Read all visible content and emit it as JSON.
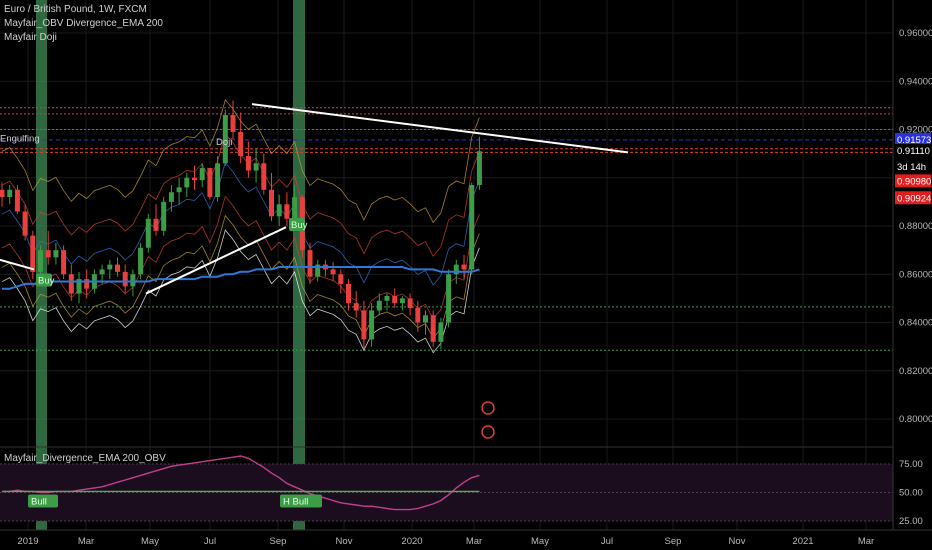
{
  "header": {
    "symbol_line": "Euro / British Pound, 1W, FXCM",
    "indicator_1": "Mayfair_OBV Divergence_EMA 200",
    "indicator_2": "Mayfair Doji"
  },
  "pane2": {
    "title": "Mayfair_Divergence_EMA 200_OBV"
  },
  "colors": {
    "background": "#000000",
    "bull": "#3d9c46",
    "bear": "#e8403e",
    "ema": "#2f78d6",
    "trendline": "#ffffff",
    "osc_line": "#c23f8e",
    "osc_signal": "#4caf50",
    "highlight": "#3f8a55"
  },
  "chart_data": [
    {
      "type": "candlestick",
      "title": "Euro / British Pound, 1W, FXCM",
      "ylim": [
        0.78,
        0.97
      ],
      "y_ticks": [
        "0.96000",
        "0.94000",
        "0.92000",
        "0.88000",
        "0.86000",
        "0.84000",
        "0.82000",
        "0.80000"
      ],
      "x_ticks": [
        "2019",
        "Mar",
        "May",
        "Jul",
        "Sep",
        "Nov",
        "2020",
        "Mar",
        "May",
        "Jul",
        "Sep",
        "Nov",
        "2021",
        "Mar"
      ],
      "price_labels": [
        {
          "text": "0.91573",
          "color": "#2a33d9"
        },
        {
          "text": "0.91110",
          "color": "#ffffff"
        },
        {
          "text": "3d 14h",
          "color": "#ffffff"
        },
        {
          "text": "0.90980",
          "color": "#e01e1e"
        },
        {
          "text": "0.90924",
          "color": "#e01e1e"
        }
      ],
      "annotations": [
        "Engulfing",
        "Doji",
        "Buy",
        "Buy"
      ],
      "candles": [
        [
          0.895,
          0.898,
          0.888,
          0.892
        ],
        [
          0.892,
          0.897,
          0.889,
          0.895
        ],
        [
          0.895,
          0.897,
          0.885,
          0.886
        ],
        [
          0.886,
          0.889,
          0.874,
          0.876
        ],
        [
          0.876,
          0.878,
          0.858,
          0.861
        ],
        [
          0.861,
          0.872,
          0.859,
          0.87
        ],
        [
          0.87,
          0.878,
          0.864,
          0.867
        ],
        [
          0.867,
          0.873,
          0.864,
          0.87
        ],
        [
          0.87,
          0.872,
          0.858,
          0.86
        ],
        [
          0.86,
          0.864,
          0.849,
          0.852
        ],
        [
          0.852,
          0.861,
          0.848,
          0.858
        ],
        [
          0.858,
          0.862,
          0.85,
          0.854
        ],
        [
          0.854,
          0.862,
          0.852,
          0.86
        ],
        [
          0.86,
          0.864,
          0.856,
          0.862
        ],
        [
          0.862,
          0.866,
          0.858,
          0.864
        ],
        [
          0.864,
          0.867,
          0.859,
          0.861
        ],
        [
          0.861,
          0.864,
          0.852,
          0.855
        ],
        [
          0.855,
          0.862,
          0.851,
          0.86
        ],
        [
          0.86,
          0.873,
          0.858,
          0.871
        ],
        [
          0.871,
          0.885,
          0.869,
          0.883
        ],
        [
          0.883,
          0.889,
          0.876,
          0.878
        ],
        [
          0.878,
          0.892,
          0.876,
          0.89
        ],
        [
          0.89,
          0.897,
          0.886,
          0.894
        ],
        [
          0.894,
          0.9,
          0.889,
          0.896
        ],
        [
          0.896,
          0.902,
          0.892,
          0.9
        ],
        [
          0.9,
          0.905,
          0.895,
          0.899
        ],
        [
          0.899,
          0.906,
          0.896,
          0.904
        ],
        [
          0.904,
          0.904,
          0.891,
          0.892
        ],
        [
          0.892,
          0.909,
          0.89,
          0.906
        ],
        [
          0.906,
          0.928,
          0.905,
          0.926
        ],
        [
          0.926,
          0.932,
          0.916,
          0.919
        ],
        [
          0.919,
          0.927,
          0.906,
          0.909
        ],
        [
          0.909,
          0.915,
          0.9,
          0.903
        ],
        [
          0.903,
          0.912,
          0.898,
          0.906
        ],
        [
          0.906,
          0.91,
          0.893,
          0.895
        ],
        [
          0.895,
          0.902,
          0.882,
          0.884
        ],
        [
          0.884,
          0.893,
          0.88,
          0.889
        ],
        [
          0.889,
          0.894,
          0.88,
          0.883
        ],
        [
          0.883,
          0.897,
          0.881,
          0.892
        ],
        [
          0.892,
          0.893,
          0.867,
          0.87
        ],
        [
          0.87,
          0.873,
          0.856,
          0.859
        ],
        [
          0.859,
          0.866,
          0.857,
          0.864
        ],
        [
          0.864,
          0.866,
          0.859,
          0.862
        ],
        [
          0.862,
          0.865,
          0.857,
          0.86
        ],
        [
          0.86,
          0.862,
          0.852,
          0.856
        ],
        [
          0.856,
          0.858,
          0.845,
          0.848
        ],
        [
          0.848,
          0.853,
          0.842,
          0.845
        ],
        [
          0.845,
          0.849,
          0.829,
          0.833
        ],
        [
          0.833,
          0.848,
          0.83,
          0.845
        ],
        [
          0.845,
          0.852,
          0.843,
          0.849
        ],
        [
          0.849,
          0.852,
          0.845,
          0.851
        ],
        [
          0.851,
          0.854,
          0.846,
          0.848
        ],
        [
          0.848,
          0.851,
          0.845,
          0.85
        ],
        [
          0.85,
          0.852,
          0.843,
          0.846
        ],
        [
          0.846,
          0.849,
          0.836,
          0.84
        ],
        [
          0.84,
          0.845,
          0.835,
          0.843
        ],
        [
          0.843,
          0.845,
          0.83,
          0.832
        ],
        [
          0.832,
          0.842,
          0.829,
          0.84
        ],
        [
          0.84,
          0.862,
          0.838,
          0.86
        ],
        [
          0.86,
          0.866,
          0.856,
          0.864
        ],
        [
          0.864,
          0.868,
          0.858,
          0.862
        ],
        [
          0.862,
          0.898,
          0.86,
          0.897
        ],
        [
          0.897,
          0.917,
          0.895,
          0.911
        ]
      ],
      "ema200": [
        0.854,
        0.854,
        0.855,
        0.856,
        0.856,
        0.856,
        0.857,
        0.857,
        0.857,
        0.857,
        0.857,
        0.857,
        0.857,
        0.857,
        0.857,
        0.857,
        0.857,
        0.857,
        0.857,
        0.857,
        0.858,
        0.858,
        0.858,
        0.858,
        0.858,
        0.858,
        0.859,
        0.859,
        0.859,
        0.86,
        0.86,
        0.861,
        0.861,
        0.862,
        0.862,
        0.862,
        0.863,
        0.863,
        0.863,
        0.863,
        0.863,
        0.863,
        0.863,
        0.863,
        0.863,
        0.863,
        0.863,
        0.863,
        0.863,
        0.863,
        0.863,
        0.863,
        0.863,
        0.862,
        0.862,
        0.862,
        0.862,
        0.861,
        0.861,
        0.861,
        0.861,
        0.861,
        0.862
      ]
    },
    {
      "type": "line",
      "title": "Mayfair_Divergence_EMA 200_OBV",
      "ylim": [
        20,
        80
      ],
      "y_ticks": [
        "75.00",
        "50.00",
        "25.00"
      ],
      "series": [
        {
          "values": [
            51,
            51,
            52,
            51,
            51,
            50,
            50,
            51,
            51,
            51,
            52,
            53,
            54,
            55,
            57,
            59,
            61,
            63,
            65,
            67,
            69,
            71,
            73,
            74,
            75,
            76,
            77,
            78,
            79,
            80,
            81,
            82,
            80,
            76,
            72,
            67,
            63,
            58,
            55,
            52,
            49,
            47,
            45,
            43,
            41,
            40,
            39,
            38,
            38,
            37,
            36,
            35,
            35,
            35,
            36,
            38,
            40,
            43,
            48,
            54,
            59,
            63,
            65
          ]
        },
        {
          "values": [
            51,
            51,
            51,
            51,
            51,
            51,
            51,
            51,
            51,
            51,
            51,
            51,
            51,
            51,
            51,
            51,
            51,
            51,
            51,
            51,
            51,
            51,
            51,
            51,
            51,
            51,
            51,
            51,
            51,
            51,
            51,
            51,
            51,
            51,
            51,
            51,
            51,
            51,
            51,
            51,
            51,
            51,
            51,
            51,
            51,
            51,
            51,
            51,
            51,
            51,
            51,
            51,
            51,
            51,
            51,
            51,
            51,
            51,
            51,
            51,
            51,
            51,
            51
          ]
        }
      ],
      "annotations": [
        "Bull",
        "H Bull"
      ]
    }
  ]
}
